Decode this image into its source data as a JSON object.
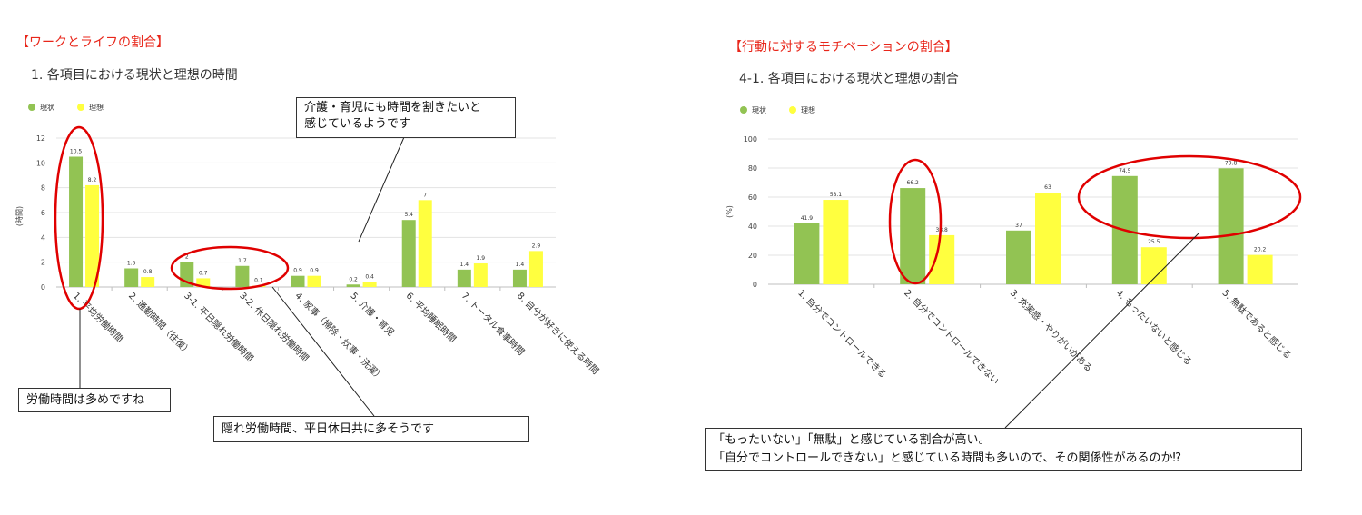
{
  "left": {
    "section_title": "【ワークとライフの割合】",
    "chart_title": "1. 各項目における現状と理想の時間",
    "callouts": {
      "top": [
        "介護・育児にも時間を割きたいと",
        "感じているようです"
      ],
      "bottom_left": "労働時間は多めですね",
      "bottom_right": "隠れ労働時間、平日休日共に多そうです"
    }
  },
  "right": {
    "section_title": "【行動に対するモチベーションの割合】",
    "chart_title": "4-1. 各項目における現状と理想の割合",
    "callout": [
      "「もったいない」「無駄」と感じている割合が高い。",
      "「自分でコントロールできない」と感じている時間も多いので、その関係性があるのか⁉"
    ]
  },
  "chart_data": [
    {
      "type": "bar",
      "ylabel": "(時間)",
      "ylim": [
        0,
        12
      ],
      "yticks": [
        "0",
        "2",
        "4",
        "6",
        "8",
        "10",
        "12"
      ],
      "categories": [
        "1. 平均労働時間",
        "2. 通勤時間（往復）",
        "3-1. 平日隠れ労働時間",
        "3-2. 休日隠れ労働時間",
        "4. 家事（掃除・炊事・洗濯）",
        "5. 介護・育児",
        "6. 平均睡眠時間",
        "7. トータル食事時間",
        "8. 自分が好きに使える時間"
      ],
      "series": [
        {
          "name": "現状",
          "color": "#92c353",
          "values": [
            10.5,
            1.5,
            2,
            1.7,
            0.9,
            0.2,
            5.4,
            1.4,
            1.4
          ],
          "labels": [
            "10.5",
            "1.5",
            "2",
            "1.7",
            "0.9",
            "0.2",
            "5.4",
            "1.4",
            "1.4"
          ]
        },
        {
          "name": "理想",
          "color": "#ffff3f",
          "values": [
            8.2,
            0.8,
            0.7,
            0.1,
            0.9,
            0.4,
            7,
            1.9,
            2.9
          ],
          "labels": [
            "8.2",
            "0.8",
            "0.7",
            "0.1",
            "0.9",
            "0.4",
            "7",
            "1.9",
            "2.9"
          ]
        }
      ],
      "legend": "top-left"
    },
    {
      "type": "bar",
      "ylabel": "(%)",
      "ylim": [
        0,
        100
      ],
      "yticks": [
        "0",
        "20",
        "40",
        "60",
        "80",
        "100"
      ],
      "categories": [
        "1. 自分でコントロールできる",
        "2. 自分でコントロールできない",
        "3. 充実感・やりがいがある",
        "4. もったいないと感じる",
        "5. 無駄であると感じる"
      ],
      "series": [
        {
          "name": "現状",
          "color": "#92c353",
          "values": [
            41.9,
            66.2,
            37,
            74.5,
            79.8
          ],
          "labels": [
            "41.9",
            "66.2",
            "37",
            "74.5",
            "79.8"
          ]
        },
        {
          "name": "理想",
          "color": "#ffff3f",
          "values": [
            58.1,
            33.8,
            63,
            25.5,
            20.2
          ],
          "labels": [
            "58.1",
            "33.8",
            "63",
            "25.5",
            "20.2"
          ]
        }
      ],
      "legend": "top-left"
    }
  ]
}
